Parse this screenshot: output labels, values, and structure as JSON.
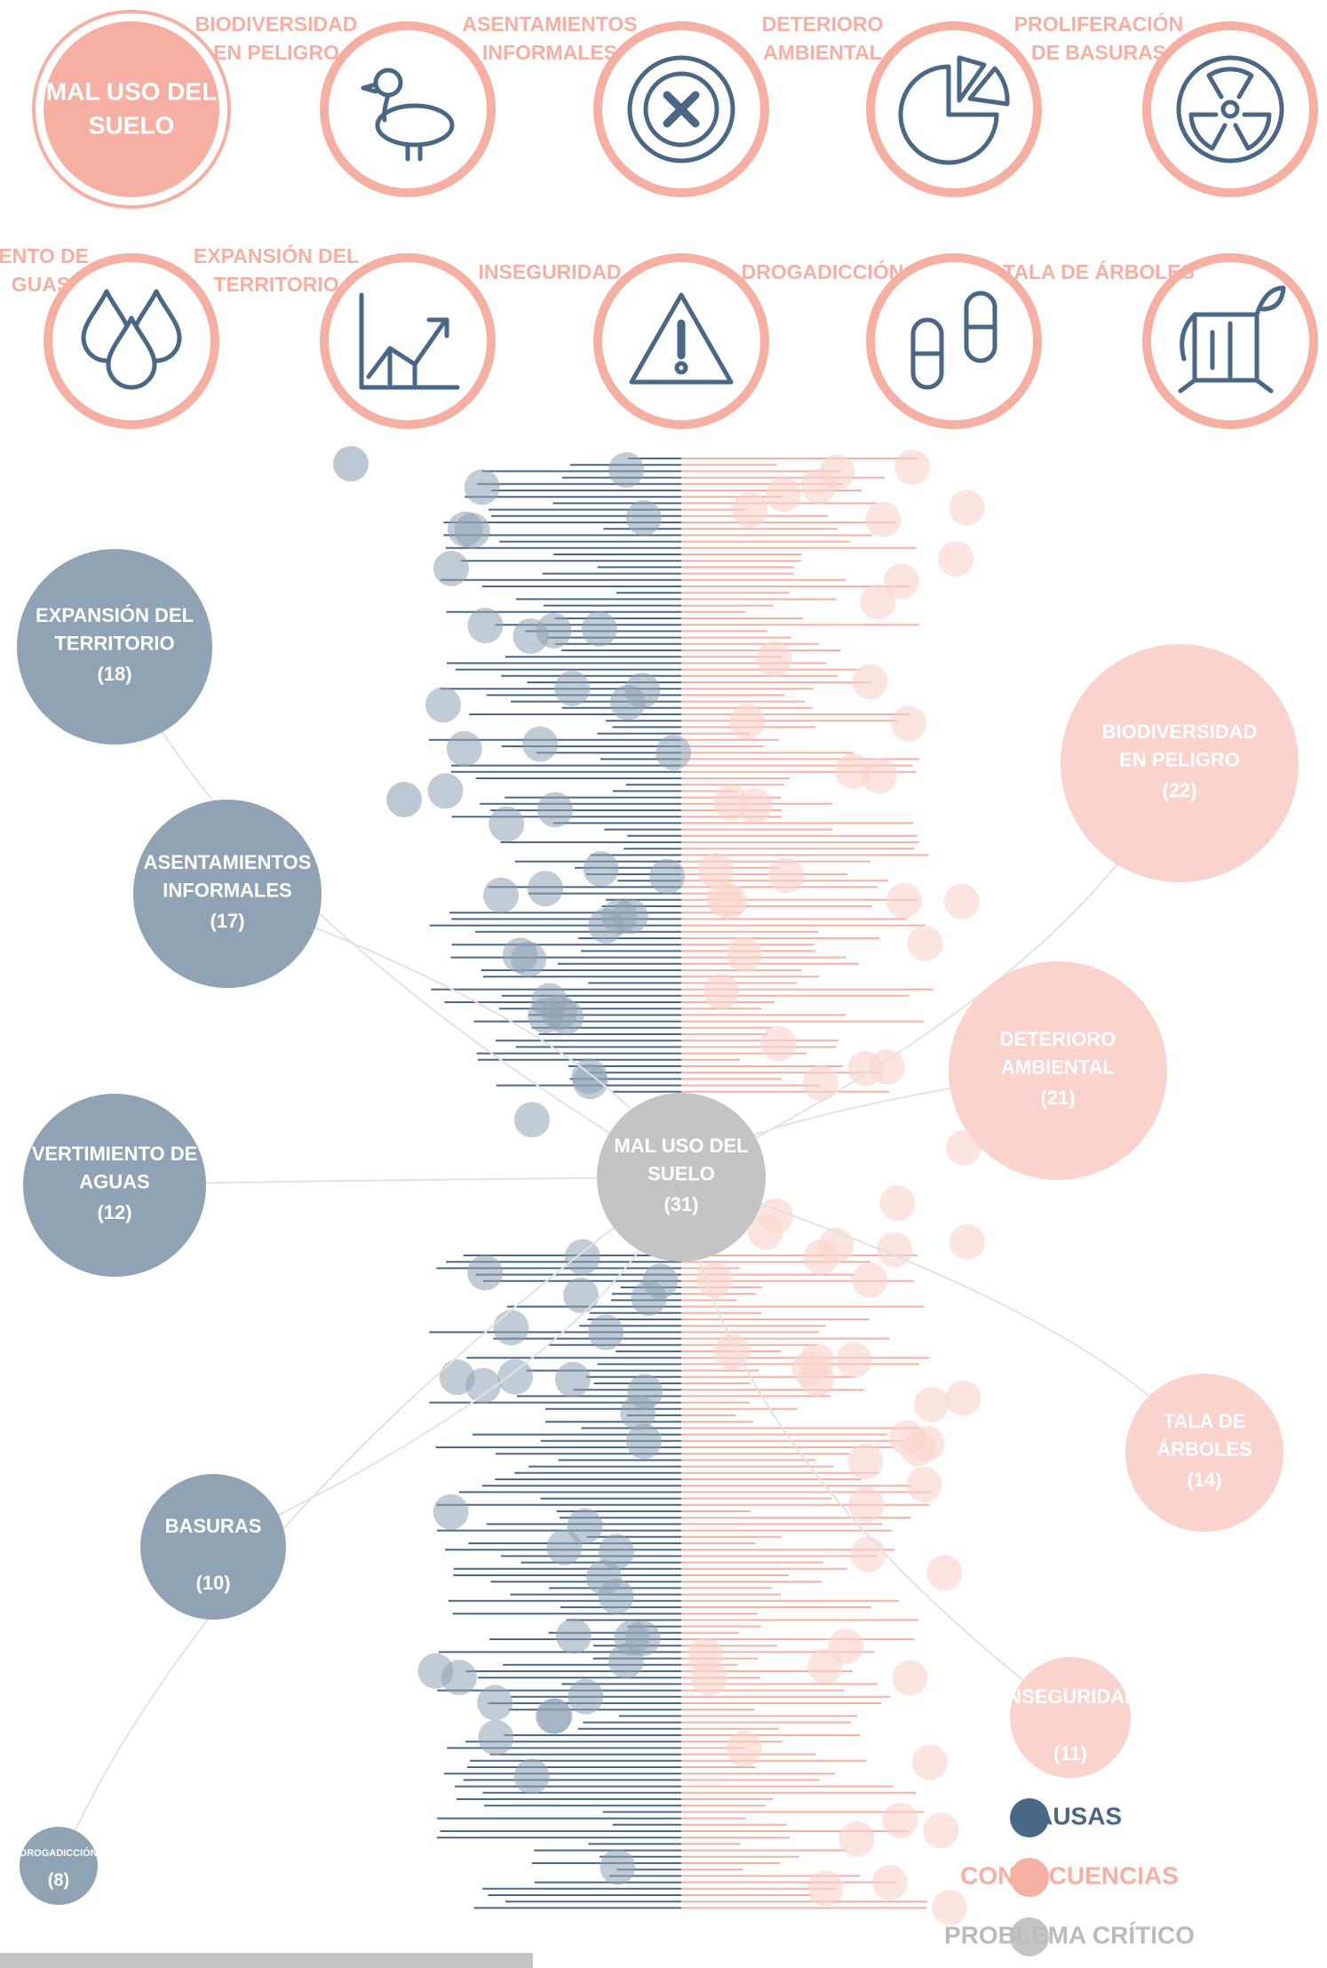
{
  "icons": [
    {
      "label": [
        "MAL USO DEL",
        "SUELO"
      ]
    },
    {
      "label": [
        "BIODIVERSIDAD",
        "EN PELIGRO"
      ]
    },
    {
      "label": [
        "ASENTAMIENTOS",
        "INFORMALES"
      ]
    },
    {
      "label": [
        "DETERIORO",
        "AMBIENTAL"
      ]
    },
    {
      "label": [
        "PROLIFERACIÓN",
        "DE BASURAS"
      ]
    },
    {
      "label": [
        "IENTO DE",
        "GUAS"
      ]
    },
    {
      "label": [
        "EXPANSIÓN DEL",
        "TERRITORIO"
      ]
    },
    {
      "label": [
        "INSEGURIDAD"
      ]
    },
    {
      "label": [
        "DROGADICCIÓN"
      ]
    },
    {
      "label": [
        "TALA DE ÁRBOLES"
      ]
    }
  ],
  "nodes": [
    {
      "label": [
        "EXPANSIÓN DEL",
        "TERRITORIO"
      ],
      "count": "(18)"
    },
    {
      "label": [
        "ASENTAMIENTOS",
        "INFORMALES"
      ],
      "count": "(17)"
    },
    {
      "label": [
        "VERTIMIENTO DE",
        "AGUAS"
      ],
      "count": "(12)"
    },
    {
      "label": [
        "BASURAS"
      ],
      "count": "(10)"
    },
    {
      "label": [
        "DROGADICCIÓN"
      ],
      "count": "(8)"
    },
    {
      "label": [
        "MAL USO DEL",
        "SUELO"
      ],
      "count": "(31)"
    },
    {
      "label": [
        "BIODIVERSIDAD",
        "EN PELIGRO"
      ],
      "count": "(22)"
    },
    {
      "label": [
        "DETERIORO",
        "AMBIENTAL"
      ],
      "count": "(21)"
    },
    {
      "label": [
        "TALA DE",
        "ÁRBOLES"
      ],
      "count": "(14)"
    },
    {
      "label": [
        "INSEGURIDAD"
      ],
      "count": "(11)"
    }
  ],
  "legend": [
    "CAUSAS",
    "CONSECUENCIAS",
    "PROBLEMA CRÍTICO"
  ]
}
